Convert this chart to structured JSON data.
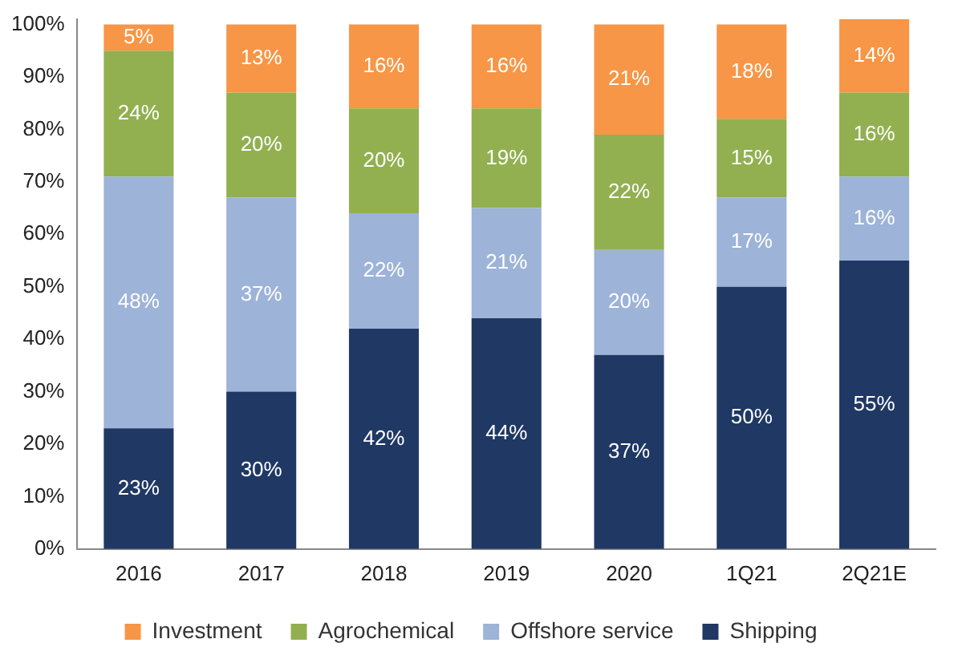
{
  "chart_data": {
    "type": "bar",
    "stacked": true,
    "categories": [
      "2016",
      "2017",
      "2018",
      "2019",
      "2020",
      "1Q21",
      "2Q21E"
    ],
    "series": [
      {
        "name": "Shipping",
        "color": "#1f3864",
        "values": [
          23,
          30,
          42,
          44,
          37,
          50,
          55
        ],
        "value_labels": [
          "23%",
          "30%",
          "42%",
          "44%",
          "37%",
          "50%",
          "55%"
        ]
      },
      {
        "name": "Offshore service",
        "color": "#9db3d8",
        "values": [
          48,
          37,
          22,
          21,
          20,
          17,
          16
        ],
        "value_labels": [
          "48%",
          "37%",
          "22%",
          "21%",
          "20%",
          "17%",
          "16%"
        ]
      },
      {
        "name": "Agrochemical",
        "color": "#92b050",
        "values": [
          24,
          20,
          20,
          19,
          22,
          15,
          16
        ],
        "value_labels": [
          "24%",
          "20%",
          "20%",
          "19%",
          "22%",
          "15%",
          "16%"
        ]
      },
      {
        "name": "Investment",
        "color": "#f79646",
        "values": [
          5,
          13,
          16,
          16,
          21,
          18,
          14
        ],
        "value_labels": [
          "5%",
          "13%",
          "16%",
          "16%",
          "21%",
          "18%",
          "14%"
        ]
      }
    ],
    "ylim": [
      0,
      101
    ],
    "yticks": [
      {
        "value": 0,
        "label": "0%"
      },
      {
        "value": 10,
        "label": "10%"
      },
      {
        "value": 20,
        "label": "20%"
      },
      {
        "value": 30,
        "label": "30%"
      },
      {
        "value": 40,
        "label": "40%"
      },
      {
        "value": 50,
        "label": "50%"
      },
      {
        "value": 60,
        "label": "60%"
      },
      {
        "value": 70,
        "label": "70%"
      },
      {
        "value": 80,
        "label": "80%"
      },
      {
        "value": 90,
        "label": "90%"
      },
      {
        "value": 100,
        "label": "100%"
      }
    ],
    "grid": false,
    "legend": "bottom"
  }
}
